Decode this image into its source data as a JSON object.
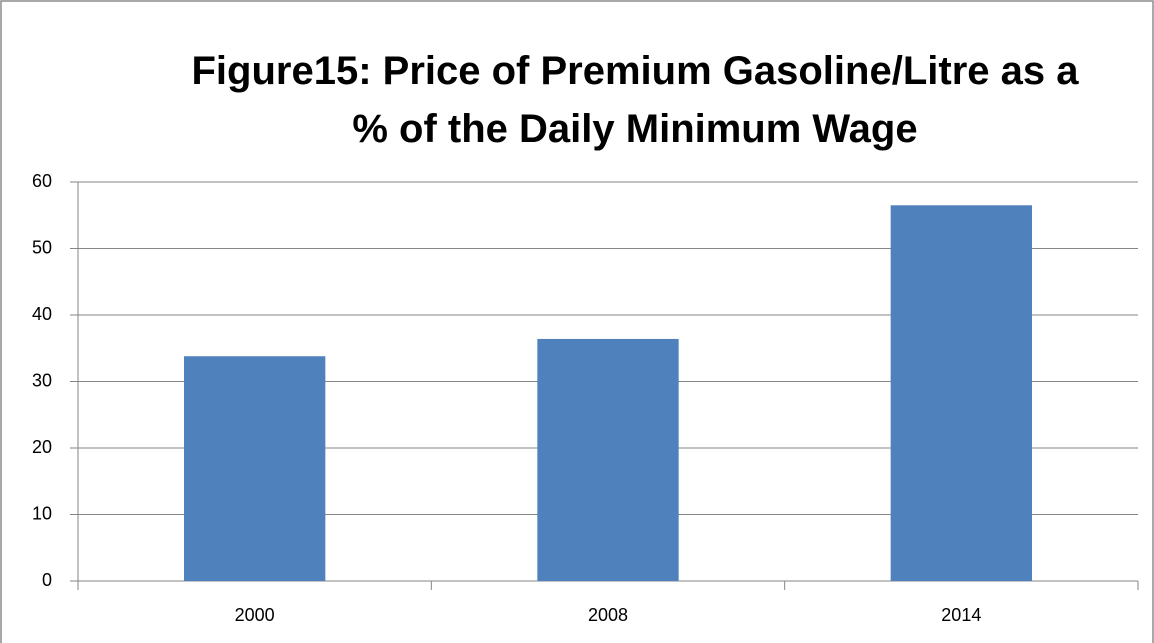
{
  "chart_data": {
    "type": "bar",
    "title": "Figure15: Price of Premium Gasoline/Litre as a % of the Daily Minimum Wage",
    "categories": [
      "2000",
      "2008",
      "2014"
    ],
    "values": [
      33.8,
      36.4,
      56.5
    ],
    "color": "#4f81bd",
    "ylim": [
      0,
      60
    ],
    "yticks": [
      0,
      10,
      20,
      30,
      40,
      50,
      60
    ],
    "grid": true
  }
}
